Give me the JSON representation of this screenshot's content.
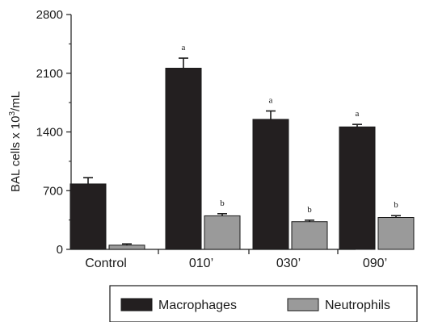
{
  "chart_data": {
    "type": "bar",
    "title": "",
    "xlabel": "",
    "ylabel": "BAL cells x 10³/mL",
    "ylabel_parts": {
      "before": "BAL cells x 10",
      "sup": "3",
      "after": "/mL"
    },
    "ylim": [
      0,
      2800
    ],
    "yticks": [
      0,
      700,
      1400,
      2100,
      2800
    ],
    "yticks_labels": [
      "0",
      "700",
      "1400",
      "2100",
      "2800"
    ],
    "minor_yticks": [
      350,
      1050,
      1750,
      2450
    ],
    "categories": [
      "Control",
      "010’",
      "030’",
      "090’"
    ],
    "series": [
      {
        "name": "Macrophages",
        "color": "#231f20",
        "values": [
          780,
          2160,
          1550,
          1460
        ],
        "errors": [
          75,
          120,
          100,
          30
        ],
        "annotations": [
          "",
          "a",
          "a",
          "a"
        ]
      },
      {
        "name": "Neutrophils",
        "color": "#9a9a9a",
        "values": [
          50,
          400,
          330,
          380
        ],
        "errors": [
          15,
          25,
          18,
          22
        ],
        "annotations": [
          "",
          "b",
          "b",
          "b"
        ]
      }
    ],
    "legend": {
      "position": "bottom",
      "entries": [
        "Macrophages",
        "Neutrophils"
      ]
    },
    "grid": false
  }
}
